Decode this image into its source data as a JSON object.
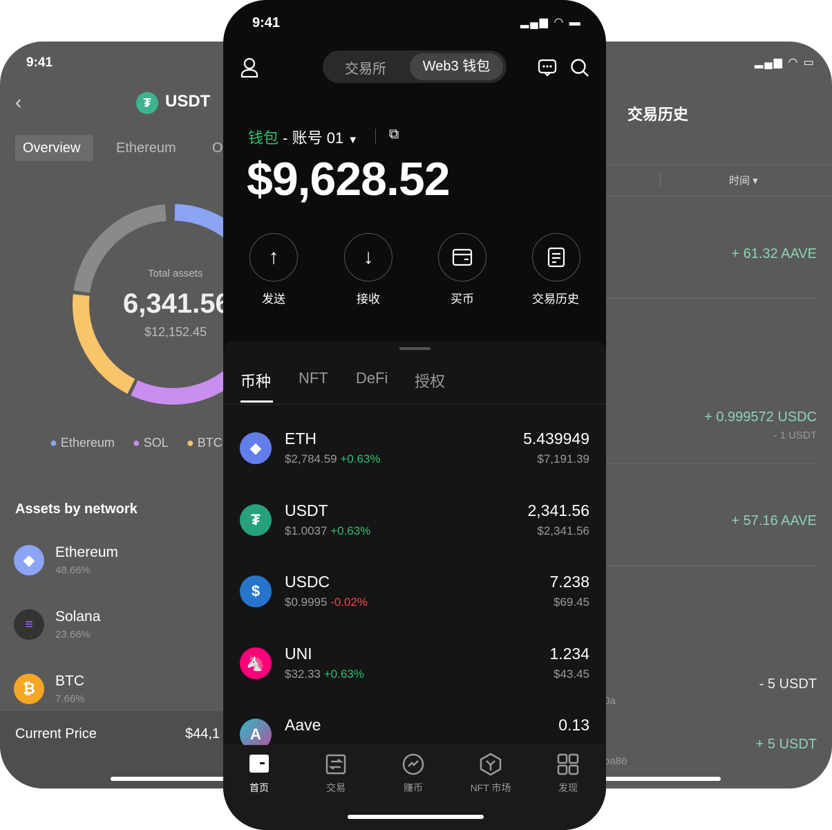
{
  "left_phone": {
    "time": "9:41",
    "title": "USDT",
    "tabs": [
      "Overview",
      "Ethereum",
      "O"
    ],
    "total_label": "Total assets",
    "total_value": "6,341.56",
    "total_usd": "$12,152.45",
    "donut_colors": {
      "ethereum": "#8ca4f5",
      "sol": "#c98ef0",
      "btc": "#f9c46a",
      "other": "#8a8a8a"
    },
    "legend": [
      {
        "label": "Ethereum",
        "color": "#8ca4f5"
      },
      {
        "label": "SOL",
        "color": "#c98ef0"
      },
      {
        "label": "BTC",
        "color": "#f9c46a"
      }
    ],
    "section_title": "Assets by network",
    "networks": [
      {
        "name": "Ethereum",
        "percent": "48.66%"
      },
      {
        "name": "Solana",
        "percent": "23.66%"
      },
      {
        "name": "BTC",
        "percent": "7.66%"
      }
    ],
    "current_price_label": "Current Price",
    "current_price_value": "$44,1"
  },
  "center_phone": {
    "time": "9:41",
    "segments": [
      "交易所",
      "Web3 钱包"
    ],
    "wallet_label": "钱包",
    "account_label": "- 账号 01",
    "balance": "$9,628.52",
    "actions": [
      "发送",
      "接收",
      "买币",
      "交易历史"
    ],
    "tabs": [
      "币种",
      "NFT",
      "DeFi",
      "授权"
    ],
    "tokens": [
      {
        "symbol": "ETH",
        "price": "$2,784.59",
        "change": "+0.63%",
        "amount": "5.439949",
        "value": "$7,191.39",
        "dir": "up"
      },
      {
        "symbol": "USDT",
        "price": "$1.0037",
        "change": "+0.63%",
        "amount": "2,341.56",
        "value": "$2,341.56",
        "dir": "up"
      },
      {
        "symbol": "USDC",
        "price": "$0.9995",
        "change": "-0.02%",
        "amount": "7.238",
        "value": "$69.45",
        "dir": "down"
      },
      {
        "symbol": "UNI",
        "price": "$32.33",
        "change": "+0.63%",
        "amount": "1.234",
        "value": "$43.45",
        "dir": "up"
      },
      {
        "symbol": "Aave",
        "price": "",
        "change": "",
        "amount": "0.13",
        "value": "",
        "dir": "up"
      }
    ],
    "nav": [
      "首页",
      "交易",
      "赚币",
      "NFT 市场",
      "发现"
    ],
    "accent": "#2fbf71"
  },
  "right_phone": {
    "title": "交易历史",
    "filter_time": "时间",
    "entries": [
      {
        "amount": "+ 61.32 AAVE",
        "sub": "",
        "tone": "in"
      },
      {
        "amount": "+ 0.999572 USDC",
        "sub": "- 1 USDT",
        "tone": "in"
      },
      {
        "amount": "+ 57.16 AAVE",
        "sub": "",
        "tone": "in"
      },
      {
        "amount": "- 5 USDT",
        "sub": "",
        "tone": "out",
        "addr": "0a"
      },
      {
        "amount": "+ 5 USDT",
        "sub": "",
        "tone": "in",
        "addr": "ba86"
      }
    ]
  }
}
